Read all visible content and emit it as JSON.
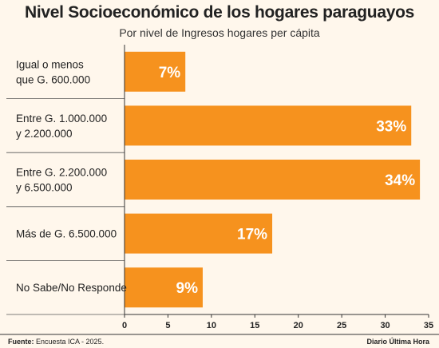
{
  "chart_data": {
    "type": "bar",
    "orientation": "horizontal",
    "title": "Nivel Socioeconómico de los hogares paraguayos",
    "subtitle": "Por nivel de Ingresos hogares per cápita",
    "categories": [
      [
        "Igual o menos",
        "que G. 600.000"
      ],
      [
        "Entre G. 1.000.000",
        "y 2.200.000"
      ],
      [
        "Entre G. 2.200.000",
        "y 6.500.000"
      ],
      [
        "Más de G. 6.500.000"
      ],
      [
        "No Sabe/No Responde"
      ]
    ],
    "values": [
      7,
      33,
      34,
      17,
      9
    ],
    "data_labels": [
      "7%",
      "33%",
      "34%",
      "17%",
      "9%"
    ],
    "xlim": [
      0,
      35
    ],
    "xticks": [
      0,
      5,
      10,
      15,
      20,
      25,
      30,
      35
    ],
    "grid": false,
    "bar_color": "#f6921e",
    "background": "#fff7ec"
  },
  "footer": {
    "source_label": "Fuente:",
    "source_text": "Encuesta ICA - 2025.",
    "brand": "Diario Última Hora"
  }
}
